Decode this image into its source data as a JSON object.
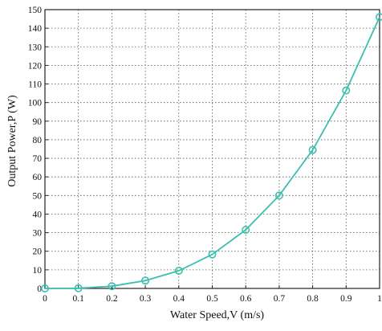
{
  "chart_data": {
    "type": "line",
    "xlabel": "Water Speed,V (m/s)",
    "ylabel": "Output Power,P (W)",
    "xlim": [
      0,
      1
    ],
    "ylim": [
      0,
      150
    ],
    "x_ticks": [
      "0",
      "0.1",
      "0.2",
      "0.3",
      "0.4",
      "0.5",
      "0.6",
      "0.7",
      "0.8",
      "0.9",
      "1"
    ],
    "y_ticks": [
      "0",
      "10",
      "20",
      "30",
      "40",
      "50",
      "60",
      "70",
      "80",
      "90",
      "100",
      "110",
      "120",
      "130",
      "140",
      "150"
    ],
    "grid": true,
    "grid_style": "dotted",
    "series": [
      {
        "color": "#3cbfb0",
        "marker": "circle",
        "x": [
          0,
          0.1,
          0.2,
          0.3,
          0.4,
          0.5,
          0.6,
          0.7,
          0.8,
          0.9,
          1.0
        ],
        "y": [
          0,
          0.1,
          1.2,
          4.2,
          9.5,
          18.3,
          31.5,
          50,
          74.5,
          106.5,
          146
        ]
      }
    ]
  }
}
